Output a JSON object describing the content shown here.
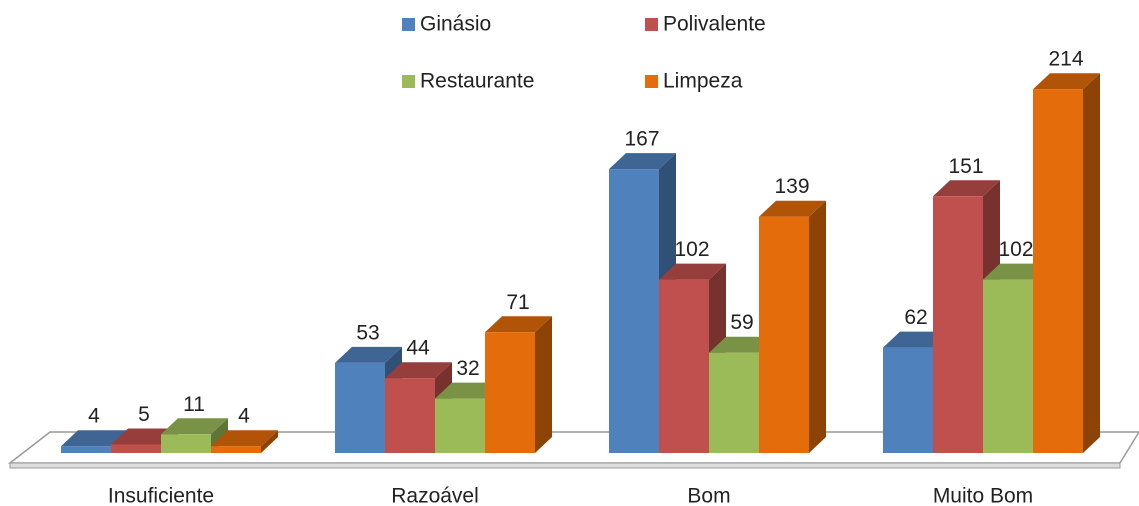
{
  "chart_data": {
    "type": "bar3d",
    "categories": [
      "Insuficiente",
      "Razoável",
      "Bom",
      "Muito Bom"
    ],
    "series": [
      {
        "name": "Ginásio",
        "color": "#4f81bd",
        "values": [
          4,
          53,
          167,
          62
        ]
      },
      {
        "name": "Polivalente",
        "color": "#c0504d",
        "values": [
          5,
          44,
          102,
          151
        ]
      },
      {
        "name": "Restaurante",
        "color": "#9bbb59",
        "values": [
          11,
          32,
          59,
          102
        ]
      },
      {
        "name": "Limpeza",
        "color": "#e46c0a",
        "values": [
          4,
          71,
          139,
          214
        ]
      }
    ]
  }
}
